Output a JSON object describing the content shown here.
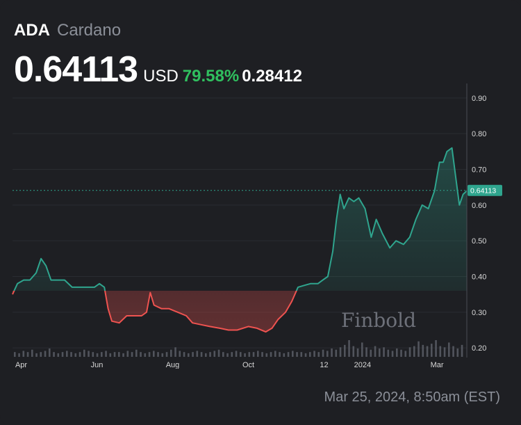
{
  "header": {
    "symbol": "ADA",
    "name": "Cardano",
    "price": "0.64113",
    "currency": "USD",
    "change_percent": "79.58%",
    "change_value": "0.28412"
  },
  "watermark": "Finbold",
  "timestamp": "Mar 25, 2024, 8:50am (EST)",
  "colors": {
    "background": "#1e1f23",
    "up_line": "#2fa58e",
    "down_line": "#ef5350",
    "positive_text": "#30c05f",
    "price_label_bg": "#2fa58e"
  },
  "chart_data": {
    "type": "area",
    "title": "",
    "xlabel": "",
    "ylabel": "",
    "ylim": [
      0.175,
      0.925
    ],
    "yticks": [
      "0.20",
      "0.30",
      "0.40",
      "0.50",
      "0.60",
      "0.70",
      "0.80",
      "0.90"
    ],
    "xticks": [
      {
        "label": "Apr",
        "date": "2023-04-01"
      },
      {
        "label": "Jun",
        "date": "2023-06-01"
      },
      {
        "label": "Aug",
        "date": "2023-08-01"
      },
      {
        "label": "Oct",
        "date": "2023-10-01"
      },
      {
        "label": "12",
        "date": "2023-12-01"
      },
      {
        "label": "2024",
        "date": "2024-01-01"
      },
      {
        "label": "Mar",
        "date": "2024-03-01"
      }
    ],
    "baseline": 0.36,
    "current_price_label": "0.64113",
    "current_price": 0.64113,
    "grid": true,
    "series": [
      {
        "points": [
          [
            "2023-03-25",
            0.35
          ],
          [
            "2023-03-29",
            0.38
          ],
          [
            "2023-04-03",
            0.39
          ],
          [
            "2023-04-08",
            0.39
          ],
          [
            "2023-04-13",
            0.41
          ],
          [
            "2023-04-17",
            0.45
          ],
          [
            "2023-04-21",
            0.43
          ],
          [
            "2023-04-25",
            0.39
          ],
          [
            "2023-04-30",
            0.39
          ],
          [
            "2023-05-06",
            0.39
          ],
          [
            "2023-05-12",
            0.37
          ],
          [
            "2023-05-18",
            0.37
          ],
          [
            "2023-05-24",
            0.37
          ],
          [
            "2023-05-30",
            0.37
          ],
          [
            "2023-06-03",
            0.38
          ],
          [
            "2023-06-07",
            0.37
          ],
          [
            "2023-06-10",
            0.31
          ],
          [
            "2023-06-13",
            0.275
          ],
          [
            "2023-06-19",
            0.27
          ],
          [
            "2023-06-25",
            0.29
          ],
          [
            "2023-07-01",
            0.29
          ],
          [
            "2023-07-07",
            0.29
          ],
          [
            "2023-07-11",
            0.3
          ],
          [
            "2023-07-14",
            0.355
          ],
          [
            "2023-07-17",
            0.32
          ],
          [
            "2023-07-23",
            0.31
          ],
          [
            "2023-07-29",
            0.31
          ],
          [
            "2023-08-05",
            0.3
          ],
          [
            "2023-08-12",
            0.29
          ],
          [
            "2023-08-17",
            0.27
          ],
          [
            "2023-08-24",
            0.265
          ],
          [
            "2023-08-31",
            0.26
          ],
          [
            "2023-09-08",
            0.255
          ],
          [
            "2023-09-15",
            0.25
          ],
          [
            "2023-09-22",
            0.25
          ],
          [
            "2023-10-01",
            0.26
          ],
          [
            "2023-10-08",
            0.255
          ],
          [
            "2023-10-15",
            0.245
          ],
          [
            "2023-10-20",
            0.255
          ],
          [
            "2023-10-25",
            0.28
          ],
          [
            "2023-10-31",
            0.3
          ],
          [
            "2023-11-05",
            0.33
          ],
          [
            "2023-11-10",
            0.37
          ],
          [
            "2023-11-15",
            0.375
          ],
          [
            "2023-11-20",
            0.38
          ],
          [
            "2023-11-26",
            0.38
          ],
          [
            "2023-11-30",
            0.39
          ],
          [
            "2023-12-04",
            0.4
          ],
          [
            "2023-12-08",
            0.47
          ],
          [
            "2023-12-11",
            0.56
          ],
          [
            "2023-12-14",
            0.63
          ],
          [
            "2023-12-17",
            0.59
          ],
          [
            "2023-12-21",
            0.62
          ],
          [
            "2023-12-25",
            0.61
          ],
          [
            "2023-12-29",
            0.62
          ],
          [
            "2024-01-03",
            0.59
          ],
          [
            "2024-01-08",
            0.51
          ],
          [
            "2024-01-12",
            0.56
          ],
          [
            "2024-01-17",
            0.52
          ],
          [
            "2024-01-23",
            0.48
          ],
          [
            "2024-01-28",
            0.5
          ],
          [
            "2024-02-03",
            0.49
          ],
          [
            "2024-02-08",
            0.51
          ],
          [
            "2024-02-13",
            0.56
          ],
          [
            "2024-02-18",
            0.6
          ],
          [
            "2024-02-23",
            0.59
          ],
          [
            "2024-02-28",
            0.64
          ],
          [
            "2024-03-03",
            0.72
          ],
          [
            "2024-03-06",
            0.72
          ],
          [
            "2024-03-09",
            0.75
          ],
          [
            "2024-03-13",
            0.76
          ],
          [
            "2024-03-16",
            0.68
          ],
          [
            "2024-03-19",
            0.6
          ],
          [
            "2024-03-22",
            0.63
          ],
          [
            "2024-03-25",
            0.64
          ]
        ]
      }
    ],
    "volume": [
      4,
      3,
      5,
      4,
      6,
      3,
      4,
      5,
      7,
      4,
      3,
      4,
      5,
      4,
      3,
      4,
      6,
      5,
      4,
      3,
      4,
      5,
      3,
      4,
      4,
      3,
      5,
      4,
      6,
      4,
      3,
      4,
      5,
      4,
      3,
      4,
      6,
      8,
      5,
      4,
      3,
      4,
      5,
      4,
      3,
      4,
      5,
      6,
      4,
      3,
      4,
      5,
      4,
      3,
      4,
      4,
      5,
      4,
      3,
      4,
      5,
      4,
      3,
      4,
      5,
      4,
      4,
      3,
      4,
      5,
      4,
      6,
      5,
      7,
      6,
      8,
      10,
      14,
      9,
      7,
      12,
      8,
      6,
      9,
      7,
      8,
      6,
      5,
      7,
      6,
      5,
      8,
      9,
      13,
      10,
      9,
      11,
      14,
      9,
      8,
      12,
      9,
      7,
      10
    ]
  }
}
